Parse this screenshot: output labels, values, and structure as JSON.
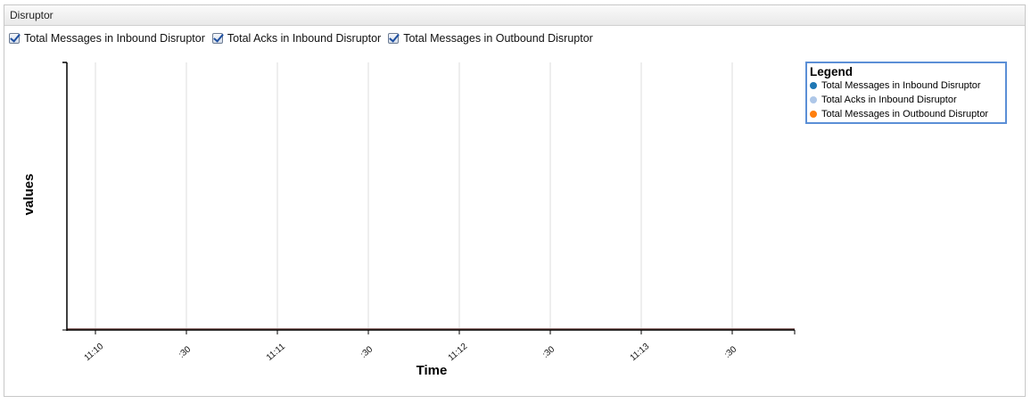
{
  "panel": {
    "title": "Disruptor"
  },
  "toggles": [
    {
      "label": "Total Messages in Inbound Disruptor",
      "checked": true
    },
    {
      "label": "Total Acks in Inbound Disruptor",
      "checked": true
    },
    {
      "label": "Total Messages in Outbound Disruptor",
      "checked": true
    }
  ],
  "legend": {
    "title": "Legend",
    "items": [
      {
        "label": "Total Messages in Inbound Disruptor",
        "color": "#1f77b4"
      },
      {
        "label": "Total Acks in Inbound Disruptor",
        "color": "#aec7e8"
      },
      {
        "label": "Total Messages in Outbound Disruptor",
        "color": "#ff7f0e"
      }
    ]
  },
  "chart_data": {
    "type": "line",
    "xlabel": "Time",
    "ylabel": "values",
    "x_ticks": [
      "11:10",
      ":30",
      "11:11",
      ":30",
      "11:12",
      ":30",
      "11:13",
      ":30"
    ],
    "grid": "vertical",
    "legend_position": "top-right",
    "series": [
      {
        "name": "Total Messages in Inbound Disruptor",
        "color": "#1f77b4",
        "values": [
          0,
          0,
          0,
          0,
          0,
          0,
          0,
          0,
          0
        ]
      },
      {
        "name": "Total Acks in Inbound Disruptor",
        "color": "#aec7e8",
        "values": [
          0,
          0,
          0,
          0,
          0,
          0,
          0,
          0,
          0
        ]
      },
      {
        "name": "Total Messages in Outbound Disruptor",
        "color": "#ff7f0e",
        "values": [
          0,
          0,
          0,
          0,
          0,
          0,
          0,
          0,
          0
        ]
      }
    ],
    "line_color": "#8c564b"
  }
}
